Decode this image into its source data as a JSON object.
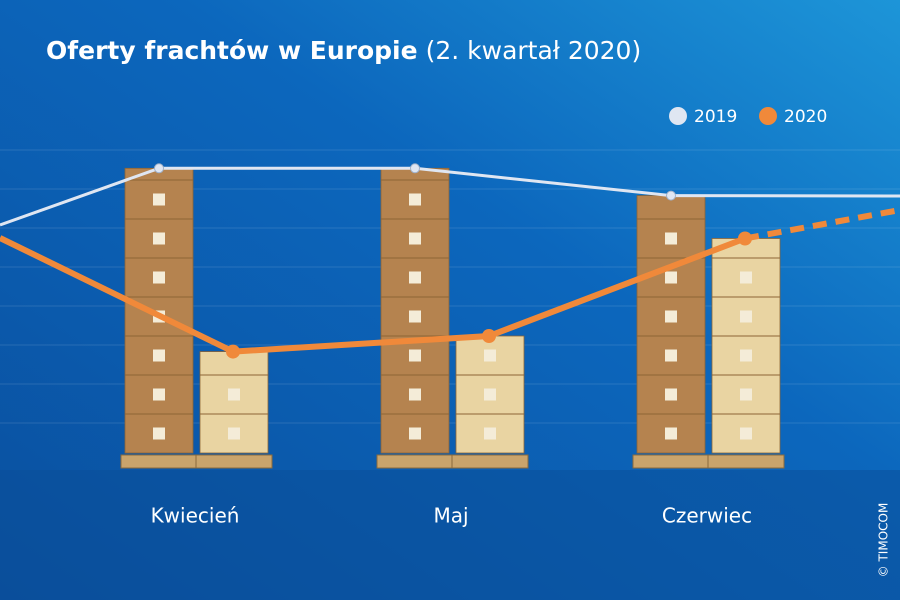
{
  "chart_data": {
    "type": "bar",
    "title": "Oferty frachtów w Europie",
    "subtitle": "(2. kwartał 2020)",
    "categories": [
      "Kwiecień",
      "Maj",
      "Czerwiec"
    ],
    "series": [
      {
        "name": "2019",
        "color": "#dfe6f2",
        "bar_color": "#b5834f",
        "values": [
          7.3,
          7.3,
          6.6
        ]
      },
      {
        "name": "2020",
        "color": "#f0893a",
        "bar_color": "#e9d4a2",
        "values": [
          2.6,
          3.0,
          5.5
        ]
      }
    ],
    "ylim": [
      0,
      9
    ],
    "copyright": "© TIMOCOM"
  }
}
